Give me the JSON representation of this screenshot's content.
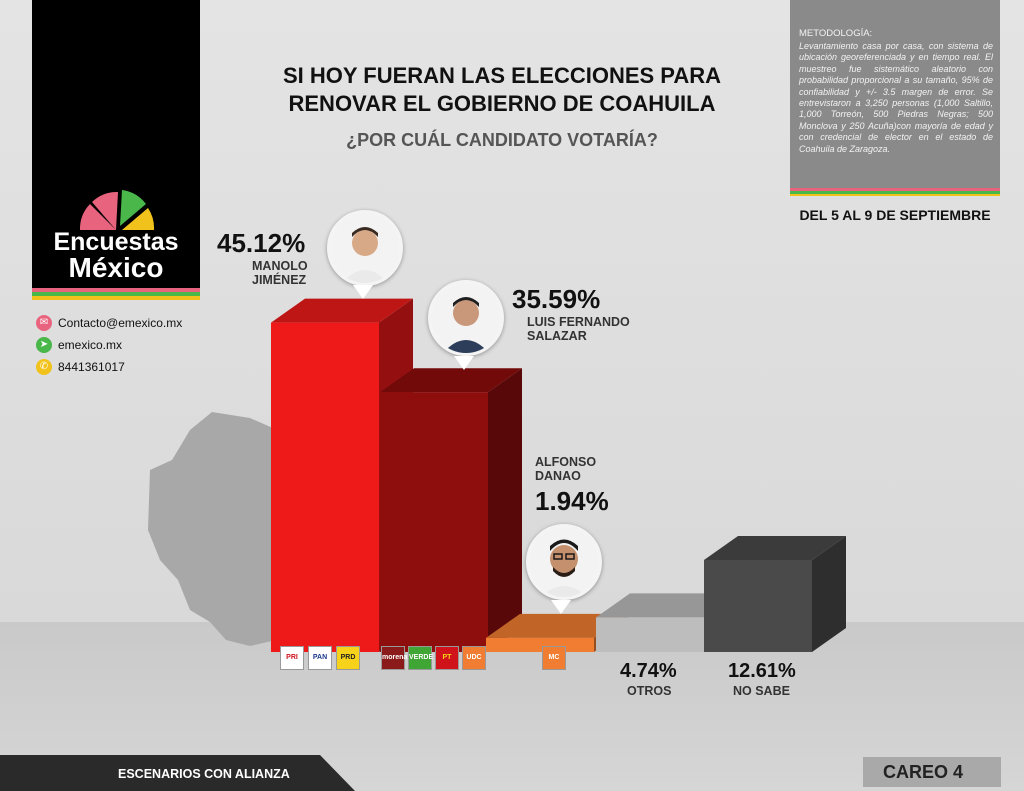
{
  "brand": {
    "name_line1": "Encuestas",
    "name_line2": "México"
  },
  "contacts": [
    {
      "icon": "mail-icon",
      "color": "#e8647e",
      "text": "Contacto@emexico.mx"
    },
    {
      "icon": "cursor-icon",
      "color": "#49b749",
      "text": "emexico.mx"
    },
    {
      "icon": "phone-icon",
      "color": "#f2c21c",
      "text": "8441361017"
    }
  ],
  "header": {
    "title_line1": "SI HOY FUERAN LAS ELECCIONES PARA",
    "title_line2": "RENOVAR EL GOBIERNO DE COAHUILA",
    "subtitle": "¿POR CUÁL CANDIDATO VOTARÍA?"
  },
  "methodology": {
    "heading": "METODOLOGÍA:",
    "body": "Levantamiento casa por casa, con sistema de ubicación georeferenciada y en tiempo real. El muestreo fue sistemático aleatorio con probabilidad proporcional a su tamaño, 95% de confiabilidad y +/- 3.5 margen de error. Se entrevistaron a 3,250 personas (1,000 Saltillo, 1,000 Torreón, 500 Piedras Negras; 500 Monclova y 250 Acuña)con mayoría de edad y con credencial de elector en el estado de Coahuila de Zaragoza.",
    "dates": "DEL 5 AL 9 DE SEPTIEMBRE"
  },
  "chart_data": {
    "type": "bar",
    "categories": [
      "MANOLO JIMÉNEZ",
      "LUIS FERNANDO SALAZAR",
      "ALFONSO DANAO",
      "OTROS",
      "NO SABE"
    ],
    "values": [
      45.12,
      35.59,
      1.94,
      4.74,
      12.61
    ],
    "value_labels": [
      "45.12%",
      "35.59%",
      "1.94%",
      "4.74%",
      "12.61%"
    ],
    "colors": [
      "#ee1a1a",
      "#8e0d0d",
      "#f07d32",
      "#bdbdbd",
      "#4a4a4a"
    ]
  },
  "candidates": [
    {
      "line1": "MANOLO",
      "line2": "JIMÉNEZ"
    },
    {
      "line1": "LUIS FERNANDO",
      "line2": "SALAZAR"
    },
    {
      "line1": "ALFONSO",
      "line2": "DANAO"
    }
  ],
  "other_labels": {
    "otros": "OTROS",
    "no_sabe": "NO SABE"
  },
  "parties": {
    "alliance1": [
      "PRI",
      "PAN",
      "PRD"
    ],
    "alliance2": [
      "morena",
      "VERDE",
      "PT",
      "UDC"
    ],
    "alliance3": [
      "MC"
    ]
  },
  "footer": {
    "left": "ESCENARIOS CON ALIANZA",
    "right": "CAREO 4"
  }
}
